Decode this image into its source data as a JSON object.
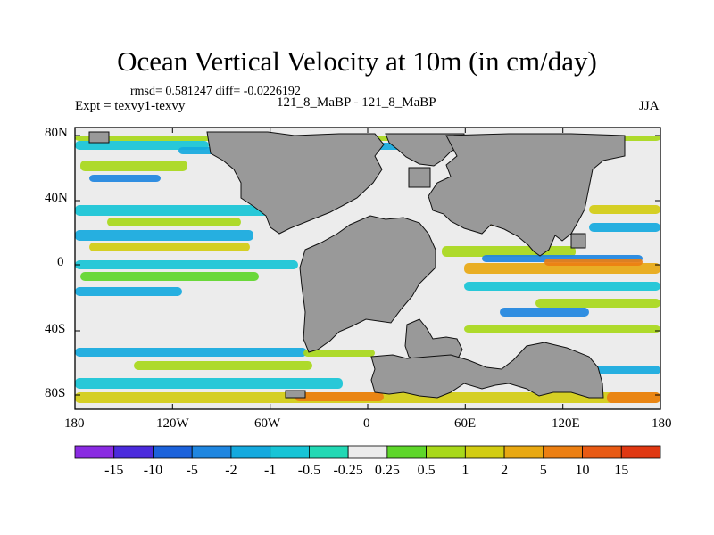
{
  "title": "Ocean Vertical Velocity at 10m (in cm/day)",
  "stats": "rmsd= 0.581247 diff= -0.0226192",
  "expt": "Expt = texvy1-texvy",
  "runs": "121_8_MaBP - 121_8_MaBP",
  "season": "JJA",
  "lat_labels": [
    "80N",
    "40N",
    "0",
    "40S",
    "80S"
  ],
  "lon_labels": [
    "180",
    "120W",
    "60W",
    "0",
    "60E",
    "120E",
    "180"
  ],
  "colorbar": {
    "labels": [
      "-15",
      "-10",
      "-5",
      "-2",
      "-1",
      "-0.5",
      "-0.25",
      "0.25",
      "0.5",
      "1",
      "2",
      "5",
      "10",
      "15"
    ],
    "colors": [
      "#8a2be2",
      "#4b2bdc",
      "#1c62db",
      "#1f86e0",
      "#15a9de",
      "#17c4d6",
      "#22d8b4",
      "#ececec",
      "#5ed62a",
      "#a8d81a",
      "#d2cc12",
      "#e8a812",
      "#ec7f12",
      "#e85a14",
      "#e03812"
    ]
  },
  "land_color": "#999999",
  "ocean_neutral_color": "#ececec"
}
